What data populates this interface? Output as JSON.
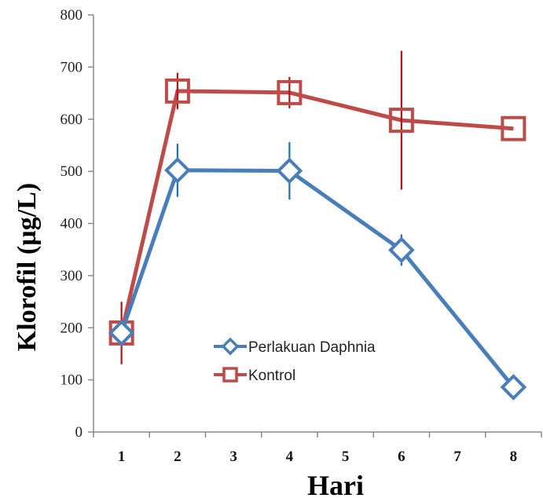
{
  "chart_data": {
    "type": "line",
    "categories": [
      "1",
      "2",
      "3",
      "4",
      "5",
      "6",
      "7",
      "8"
    ],
    "xlabel": "Hari",
    "ylabel": "Klorofil (µg/L)",
    "ylim": [
      0,
      800
    ],
    "yticks": [
      0,
      100,
      200,
      300,
      400,
      500,
      600,
      700,
      800
    ],
    "grid": false,
    "legend_position": "center-left",
    "series": [
      {
        "name": "Perlakuan Daphnia",
        "color": "#4a7ebb",
        "marker": "diamond",
        "x": [
          "1",
          "2",
          "4",
          "6",
          "8"
        ],
        "values": [
          190,
          502,
          501,
          349,
          86
        ],
        "error": [
          null,
          51,
          55,
          30,
          null
        ]
      },
      {
        "name": "Kontrol",
        "color": "#be4b48",
        "marker": "square",
        "x": [
          "1",
          "2",
          "4",
          "6",
          "8"
        ],
        "values": [
          190,
          654,
          651,
          598,
          582
        ],
        "error": [
          60,
          35,
          30,
          133,
          null
        ]
      }
    ]
  }
}
